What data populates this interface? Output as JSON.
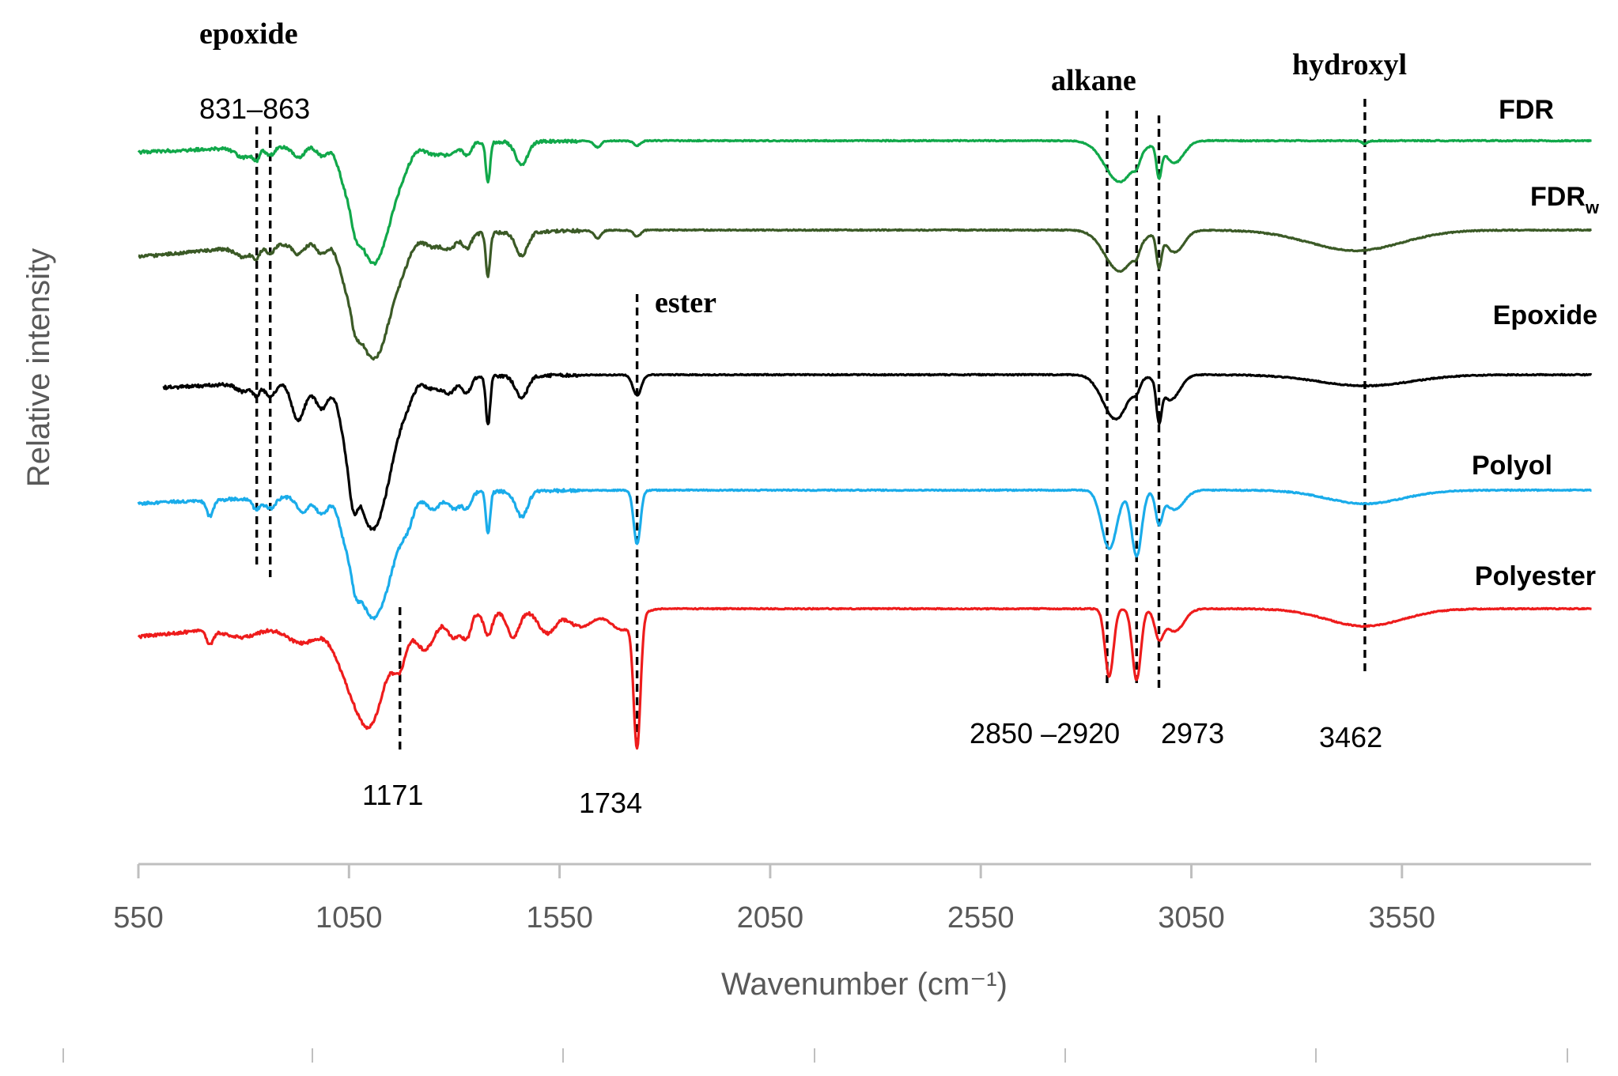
{
  "chart_data": {
    "type": "line",
    "xlabel": "Wavenumber (cm⁻¹)",
    "ylabel": "Relative intensity",
    "x_ticks": [
      550,
      1050,
      1550,
      2050,
      2550,
      3050,
      3550
    ],
    "xlim": [
      550,
      4000
    ],
    "grid": false,
    "y_axis_values_shown": false,
    "series": [
      {
        "name": "FDR",
        "color": "#11a84a"
      },
      {
        "name": "FDRw",
        "color": "#3b5a26"
      },
      {
        "name": "Epoxide",
        "color": "#000000"
      },
      {
        "name": "Polyol",
        "color": "#1aacea"
      },
      {
        "name": "Polyester",
        "color": "#ee1c1c"
      }
    ],
    "group_annotations": [
      {
        "text": "epoxide"
      },
      {
        "text": "alkane"
      },
      {
        "text": "hydroxyl"
      },
      {
        "text": "ester"
      }
    ],
    "peak_labels": [
      {
        "text": "831–863",
        "x": [
          831,
          863
        ]
      },
      {
        "text": "1171",
        "x": [
          1171
        ]
      },
      {
        "text": "1734",
        "x": [
          1734
        ]
      },
      {
        "text": "2850 –2920",
        "x": [
          2850,
          2920
        ]
      },
      {
        "text": "2973",
        "x": [
          2973
        ]
      },
      {
        "text": "3462",
        "x": [
          3462
        ]
      }
    ],
    "guide_lines_x": [
      831,
      863,
      1171,
      1734,
      2850,
      2920,
      2973,
      3462
    ]
  }
}
